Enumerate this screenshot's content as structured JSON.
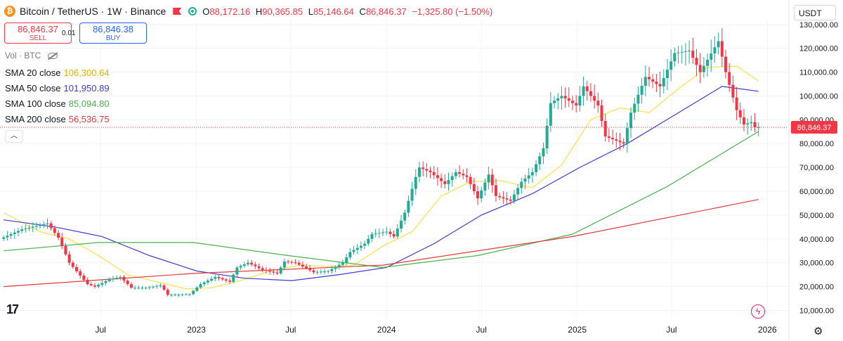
{
  "legend": {
    "coin_icon": "bitcoin-icon",
    "symbol": "Bitcoin / TetherUS · 1W · Binance",
    "ohlc": {
      "o_label": "O",
      "o": "88,172.16",
      "h_label": "H",
      "h": "90,365.85",
      "l_label": "L",
      "l": "85,146.64",
      "c_label": "C",
      "c": "86,846.37",
      "change": "−1,325.80 (−1.50%)"
    }
  },
  "trade": {
    "sell_price": "86,846.37",
    "sell_label": "SELL",
    "spread": "0.01",
    "buy_price": "86,846.38",
    "buy_label": "BUY"
  },
  "volume": {
    "label": "Vol · BTC"
  },
  "indicators": [
    {
      "name": "SMA 20 close",
      "value": "106,300.64",
      "color": "#f9e04b"
    },
    {
      "name": "SMA 50 close",
      "value": "101,950.89",
      "color": "#3c3ccf"
    },
    {
      "name": "SMA 100 close",
      "value": "85,094.80",
      "color": "#4caf50"
    },
    {
      "name": "SMA 200 close",
      "value": "56,536.75",
      "color": "#e03b3b"
    }
  ],
  "currency": "USDT",
  "price_label": "86,846.37",
  "colors": {
    "up": "#22ab94",
    "down": "#f23645",
    "grid": "#f0f3fa"
  },
  "chart_data": {
    "type": "candlestick",
    "interval": "1W",
    "y_ticks": [
      "10,000.00",
      "20,000.00",
      "30,000.00",
      "40,000.00",
      "50,000.00",
      "60,000.00",
      "70,000.00",
      "80,000.00",
      "90,000.00",
      "100,000.00",
      "110,000.00",
      "120,000.00",
      "130,000.00"
    ],
    "ylim": [
      6000,
      132000
    ],
    "x_ticks": [
      {
        "date": "2022-07-01",
        "label": "Jul"
      },
      {
        "date": "2023-01-01",
        "label": "2023"
      },
      {
        "date": "2023-07-01",
        "label": "Jul"
      },
      {
        "date": "2024-01-01",
        "label": "2024"
      },
      {
        "date": "2024-07-01",
        "label": "Jul"
      },
      {
        "date": "2025-01-01",
        "label": "2025"
      },
      {
        "date": "2025-07-01",
        "label": "Jul"
      },
      {
        "date": "2026-01-01",
        "label": "2026"
      }
    ],
    "xlim": [
      "2021-12-20",
      "2026-02-10"
    ],
    "last_close": 86846.37,
    "price_points": [
      [
        "2021-12-27",
        40000
      ],
      [
        "2022-02-07",
        44000
      ],
      [
        "2022-03-28",
        46500
      ],
      [
        "2022-04-18",
        40500
      ],
      [
        "2022-05-09",
        30000
      ],
      [
        "2022-06-13",
        21000
      ],
      [
        "2022-06-27",
        20000
      ],
      [
        "2022-07-25",
        23000
      ],
      [
        "2022-08-15",
        24000
      ],
      [
        "2022-09-05",
        19500
      ],
      [
        "2022-10-03",
        19500
      ],
      [
        "2022-11-01",
        20500
      ],
      [
        "2022-11-14",
        16500
      ],
      [
        "2022-12-26",
        16800
      ],
      [
        "2023-01-16",
        21000
      ],
      [
        "2023-02-13",
        24000
      ],
      [
        "2023-03-13",
        22000
      ],
      [
        "2023-03-27",
        28000
      ],
      [
        "2023-04-17",
        30000
      ],
      [
        "2023-05-15",
        27000
      ],
      [
        "2023-06-12",
        25500
      ],
      [
        "2023-06-26",
        30500
      ],
      [
        "2023-07-17",
        30000
      ],
      [
        "2023-08-21",
        26000
      ],
      [
        "2023-09-18",
        26500
      ],
      [
        "2023-10-16",
        30000
      ],
      [
        "2023-10-30",
        34500
      ],
      [
        "2023-11-27",
        38000
      ],
      [
        "2023-12-11",
        42000
      ],
      [
        "2024-01-08",
        43000
      ],
      [
        "2024-01-22",
        41000
      ],
      [
        "2024-02-12",
        51000
      ],
      [
        "2024-03-04",
        66000
      ],
      [
        "2024-03-11",
        70000
      ],
      [
        "2024-04-01",
        68000
      ],
      [
        "2024-04-29",
        63000
      ],
      [
        "2024-05-20",
        68000
      ],
      [
        "2024-06-10",
        66000
      ],
      [
        "2024-07-01",
        57000
      ],
      [
        "2024-07-22",
        67000
      ],
      [
        "2024-08-05",
        58000
      ],
      [
        "2024-09-02",
        56000
      ],
      [
        "2024-09-23",
        64000
      ],
      [
        "2024-10-14",
        68000
      ],
      [
        "2024-11-04",
        78000
      ],
      [
        "2024-11-18",
        97000
      ],
      [
        "2024-12-09",
        100000
      ],
      [
        "2025-01-06",
        96000
      ],
      [
        "2025-01-20",
        104000
      ],
      [
        "2025-02-17",
        96000
      ],
      [
        "2025-03-03",
        83000
      ],
      [
        "2025-04-07",
        80000
      ],
      [
        "2025-04-21",
        93000
      ],
      [
        "2025-05-19",
        108000
      ],
      [
        "2025-06-16",
        104000
      ],
      [
        "2025-07-14",
        118000
      ],
      [
        "2025-08-11",
        119000
      ],
      [
        "2025-09-01",
        110000
      ],
      [
        "2025-10-06",
        123000
      ],
      [
        "2025-10-20",
        110000
      ],
      [
        "2025-11-10",
        94000
      ],
      [
        "2025-11-24",
        88000
      ],
      [
        "2025-12-08",
        89000
      ],
      [
        "2025-12-15",
        86846
      ]
    ],
    "series": [
      {
        "name": "SMA 20 close",
        "color": "#f9e04b",
        "points": [
          [
            "2021-12-27",
            51000
          ],
          [
            "2022-03-07",
            43000
          ],
          [
            "2022-05-02",
            40000
          ],
          [
            "2022-06-27",
            33000
          ],
          [
            "2022-08-22",
            25000
          ],
          [
            "2022-10-17",
            22000
          ],
          [
            "2022-12-12",
            19000
          ],
          [
            "2023-01-30",
            19500
          ],
          [
            "2023-03-27",
            22500
          ],
          [
            "2023-05-22",
            26500
          ],
          [
            "2023-07-17",
            29000
          ],
          [
            "2023-09-11",
            28500
          ],
          [
            "2023-10-30",
            29000
          ],
          [
            "2023-12-25",
            37000
          ],
          [
            "2024-02-19",
            43000
          ],
          [
            "2024-04-15",
            58000
          ],
          [
            "2024-06-10",
            64000
          ],
          [
            "2024-08-05",
            64500
          ],
          [
            "2024-10-07",
            61500
          ],
          [
            "2024-12-02",
            71000
          ],
          [
            "2025-01-27",
            90000
          ],
          [
            "2025-03-24",
            95000
          ],
          [
            "2025-05-19",
            93000
          ],
          [
            "2025-07-14",
            103000
          ],
          [
            "2025-09-08",
            112000
          ],
          [
            "2025-11-03",
            112500
          ],
          [
            "2025-12-15",
            106300
          ]
        ]
      },
      {
        "name": "SMA 50 close",
        "color": "#3c3ccf",
        "points": [
          [
            "2021-12-27",
            48000
          ],
          [
            "2022-04-04",
            45000
          ],
          [
            "2022-07-04",
            41000
          ],
          [
            "2022-10-03",
            33000
          ],
          [
            "2023-01-02",
            26500
          ],
          [
            "2023-04-03",
            23500
          ],
          [
            "2023-07-03",
            22500
          ],
          [
            "2023-10-02",
            25000
          ],
          [
            "2024-01-01",
            28000
          ],
          [
            "2024-04-01",
            38000
          ],
          [
            "2024-07-01",
            50000
          ],
          [
            "2024-10-07",
            59000
          ],
          [
            "2025-01-06",
            70000
          ],
          [
            "2025-04-07",
            80000
          ],
          [
            "2025-07-07",
            92000
          ],
          [
            "2025-10-06",
            104000
          ],
          [
            "2025-12-15",
            101950
          ]
        ]
      },
      {
        "name": "SMA 100 close",
        "color": "#4caf50",
        "points": [
          [
            "2021-12-27",
            35000
          ],
          [
            "2022-06-27",
            38500
          ],
          [
            "2022-12-26",
            38500
          ],
          [
            "2023-06-26",
            33000
          ],
          [
            "2023-12-25",
            28000
          ],
          [
            "2024-06-24",
            33000
          ],
          [
            "2024-12-23",
            42000
          ],
          [
            "2025-06-23",
            62000
          ],
          [
            "2025-12-15",
            85094
          ]
        ]
      },
      {
        "name": "SMA 200 close",
        "color": "#e03b3b",
        "points": [
          [
            "2021-12-27",
            20000
          ],
          [
            "2022-12-26",
            25500
          ],
          [
            "2023-12-25",
            29000
          ],
          [
            "2024-12-23",
            41000
          ],
          [
            "2025-12-15",
            56536
          ]
        ]
      }
    ]
  }
}
